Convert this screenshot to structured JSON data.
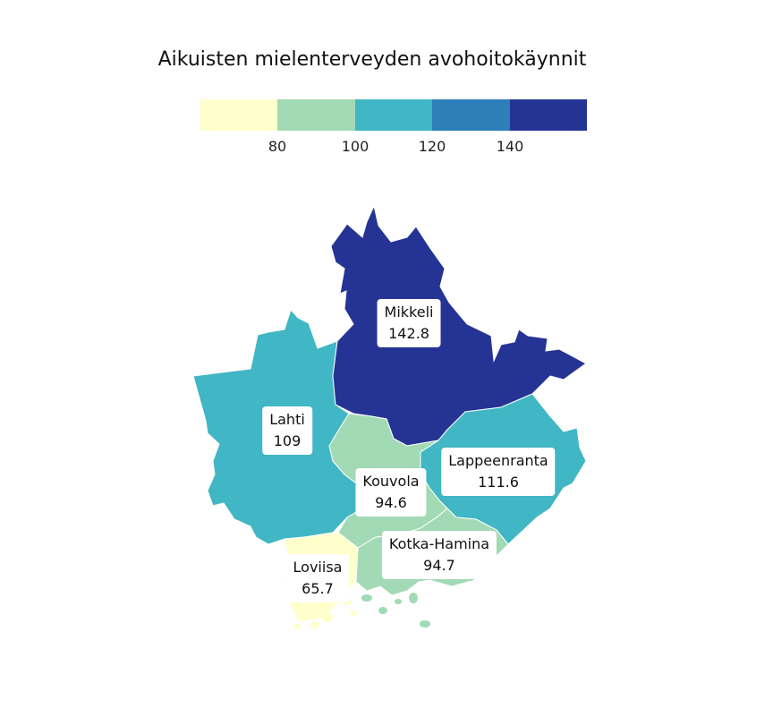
{
  "title": "Aikuisten mielenterveyden avohoitokäynnit",
  "legend": {
    "colors": [
      "#ffffcc",
      "#a1dab4",
      "#41b6c4",
      "#2c7fb8",
      "#253494"
    ],
    "ticks": [
      "80",
      "100",
      "120",
      "140"
    ]
  },
  "regions": [
    {
      "id": "mikkeli",
      "name": "Mikkeli",
      "value": "142.8",
      "color": "#253494"
    },
    {
      "id": "lahti",
      "name": "Lahti",
      "value": "109",
      "color": "#41b6c4"
    },
    {
      "id": "lappeenranta",
      "name": "Lappeenranta",
      "value": "111.6",
      "color": "#41b6c4"
    },
    {
      "id": "kouvola",
      "name": "Kouvola",
      "value": "94.6",
      "color": "#a1dab4"
    },
    {
      "id": "kotka-hamina",
      "name": "Kotka-Hamina",
      "value": "94.7",
      "color": "#a1dab4"
    },
    {
      "id": "loviisa",
      "name": "Loviisa",
      "value": "65.7",
      "color": "#ffffcc"
    }
  ]
}
